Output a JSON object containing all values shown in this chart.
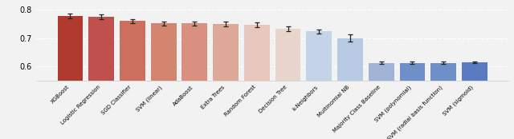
{
  "categories": [
    "XGBoost",
    "Logistic Regression",
    "SGD Classifier",
    "SVM (linear)",
    "AdaBoost",
    "Extra Trees",
    "Random Forest",
    "Decision Tree",
    "k-Neighbors",
    "Multinomial NB",
    "Majority Class Baseline",
    "SVM (polynomial)",
    "SVM (radial basis function)",
    "SVM (sigmoid)"
  ],
  "values": [
    0.779,
    0.775,
    0.761,
    0.752,
    0.752,
    0.75,
    0.748,
    0.734,
    0.724,
    0.7,
    0.613,
    0.613,
    0.613,
    0.614
  ],
  "errors": [
    0.008,
    0.008,
    0.007,
    0.007,
    0.007,
    0.008,
    0.008,
    0.009,
    0.007,
    0.013,
    0.005,
    0.004,
    0.004,
    0.003
  ],
  "colors": [
    "#b03a2e",
    "#c0504d",
    "#cd6f5e",
    "#d4856f",
    "#d99080",
    "#dda898",
    "#e8c8bc",
    "#e8d5cc",
    "#c5d3e8",
    "#b8c9e4",
    "#a0b4d8",
    "#6e8fc7",
    "#6e8fc7",
    "#5a7bbf"
  ],
  "ylim": [
    0.55,
    0.82
  ],
  "yticks": [
    0.6,
    0.7,
    0.8
  ],
  "background_color": "#f2f2f2",
  "errorbar_color": "#222222"
}
